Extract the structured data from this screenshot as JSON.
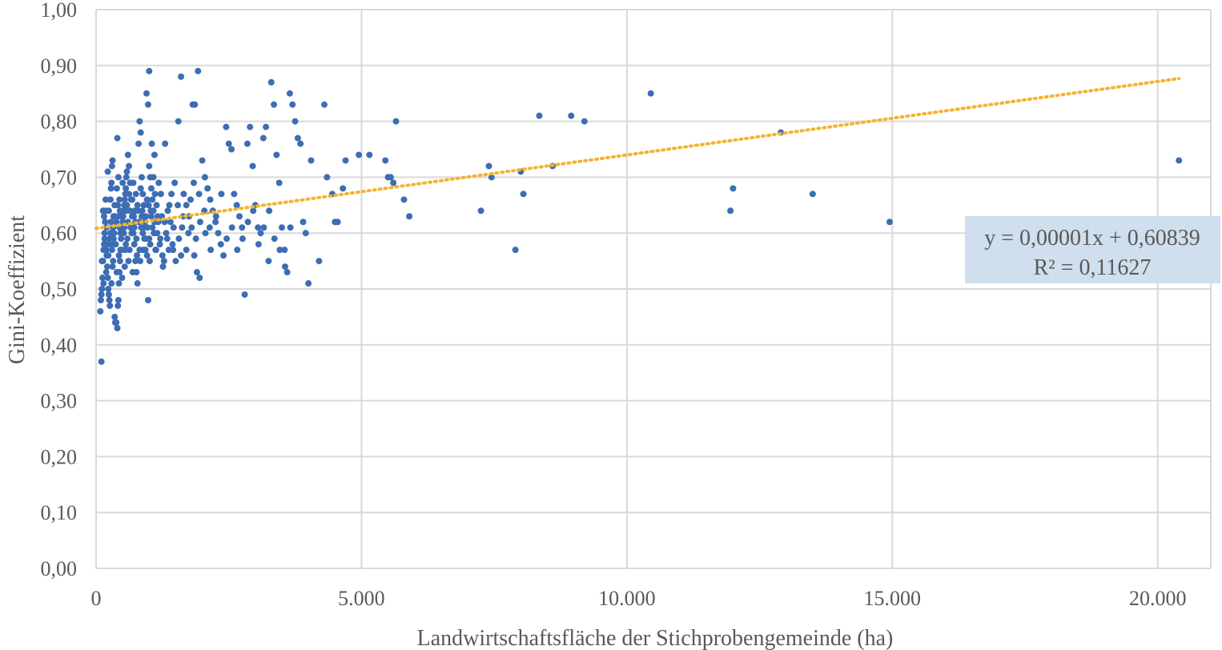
{
  "chart_data": {
    "type": "scatter",
    "title": "",
    "xlabel": "Landwirtschaftsfläche der Stichprobengemeinde  (ha)",
    "ylabel": "Gini-Koeffizient",
    "xlim": [
      0,
      21000
    ],
    "ylim": [
      0,
      1.0
    ],
    "x_ticks": [
      0,
      5000,
      10000,
      15000,
      20000
    ],
    "x_tick_labels": [
      "0",
      "5.000",
      "10.000",
      "15.000",
      "20.000"
    ],
    "y_ticks": [
      0,
      0.1,
      0.2,
      0.3,
      0.4,
      0.5,
      0.6,
      0.7,
      0.8,
      0.9,
      1.0
    ],
    "y_tick_labels": [
      "0,00",
      "0,10",
      "0,20",
      "0,30",
      "0,40",
      "0,50",
      "0,60",
      "0,70",
      "0,80",
      "0,90",
      "1,00"
    ],
    "grid": true,
    "colors": {
      "points": "#3d6db3",
      "trendline": "#f2b430",
      "equation_box": "#cfdfed",
      "grid": "#d9d9d9",
      "text": "#595959"
    },
    "trendline": {
      "type": "linear",
      "slope": 1.315e-05,
      "intercept": 0.60839,
      "x_range": [
        0,
        20400
      ],
      "equation": "y = 0,00001x + 0,60839",
      "r_squared": "R² = 0,11627"
    },
    "points": [
      [
        100,
        0.37
      ],
      [
        80,
        0.46
      ],
      [
        90,
        0.48
      ],
      [
        100,
        0.49
      ],
      [
        110,
        0.5
      ],
      [
        120,
        0.52
      ],
      [
        130,
        0.55
      ],
      [
        140,
        0.57
      ],
      [
        150,
        0.58
      ],
      [
        160,
        0.6
      ],
      [
        170,
        0.62
      ],
      [
        180,
        0.64
      ],
      [
        190,
        0.57
      ],
      [
        200,
        0.56
      ],
      [
        210,
        0.54
      ],
      [
        220,
        0.52
      ],
      [
        230,
        0.5
      ],
      [
        240,
        0.49
      ],
      [
        250,
        0.48
      ],
      [
        260,
        0.47
      ],
      [
        270,
        0.66
      ],
      [
        280,
        0.68
      ],
      [
        290,
        0.69
      ],
      [
        300,
        0.72
      ],
      [
        310,
        0.73
      ],
      [
        320,
        0.61
      ],
      [
        330,
        0.59
      ],
      [
        340,
        0.58
      ],
      [
        350,
        0.45
      ],
      [
        360,
        0.44
      ],
      [
        380,
        0.44
      ],
      [
        400,
        0.43
      ],
      [
        410,
        0.47
      ],
      [
        420,
        0.48
      ],
      [
        430,
        0.51
      ],
      [
        440,
        0.53
      ],
      [
        450,
        0.55
      ],
      [
        460,
        0.57
      ],
      [
        470,
        0.59
      ],
      [
        480,
        0.6
      ],
      [
        490,
        0.61
      ],
      [
        500,
        0.62
      ],
      [
        510,
        0.63
      ],
      [
        520,
        0.64
      ],
      [
        530,
        0.65
      ],
      [
        540,
        0.66
      ],
      [
        550,
        0.67
      ],
      [
        560,
        0.68
      ],
      [
        570,
        0.7
      ],
      [
        580,
        0.71
      ],
      [
        400,
        0.77
      ],
      [
        420,
        0.63
      ],
      [
        440,
        0.61
      ],
      [
        460,
        0.6
      ],
      [
        600,
        0.74
      ],
      [
        620,
        0.72
      ],
      [
        640,
        0.69
      ],
      [
        660,
        0.66
      ],
      [
        680,
        0.63
      ],
      [
        700,
        0.6
      ],
      [
        720,
        0.58
      ],
      [
        740,
        0.55
      ],
      [
        760,
        0.53
      ],
      [
        780,
        0.51
      ],
      [
        800,
        0.76
      ],
      [
        820,
        0.8
      ],
      [
        840,
        0.78
      ],
      [
        860,
        0.7
      ],
      [
        880,
        0.67
      ],
      [
        900,
        0.65
      ],
      [
        920,
        0.62
      ],
      [
        940,
        0.59
      ],
      [
        960,
        0.56
      ],
      [
        980,
        0.48
      ],
      [
        950,
        0.85
      ],
      [
        980,
        0.83
      ],
      [
        1000,
        0.72
      ],
      [
        1020,
        0.7
      ],
      [
        1040,
        0.68
      ],
      [
        1060,
        0.66
      ],
      [
        1080,
        0.64
      ],
      [
        1100,
        0.62
      ],
      [
        1000,
        0.89
      ],
      [
        1050,
        0.76
      ],
      [
        1100,
        0.74
      ],
      [
        1150,
        0.6
      ],
      [
        1200,
        0.58
      ],
      [
        1250,
        0.56
      ],
      [
        1300,
        0.76
      ],
      [
        1350,
        0.64
      ],
      [
        1400,
        0.62
      ],
      [
        1450,
        0.57
      ],
      [
        1500,
        0.55
      ],
      [
        1550,
        0.8
      ],
      [
        1600,
        0.88
      ],
      [
        1650,
        0.67
      ],
      [
        1700,
        0.65
      ],
      [
        1750,
        0.63
      ],
      [
        1800,
        0.61
      ],
      [
        1850,
        0.56
      ],
      [
        1900,
        0.53
      ],
      [
        1950,
        0.52
      ],
      [
        1820,
        0.83
      ],
      [
        1860,
        0.83
      ],
      [
        1920,
        0.89
      ],
      [
        2000,
        0.73
      ],
      [
        2050,
        0.7
      ],
      [
        2100,
        0.68
      ],
      [
        2150,
        0.66
      ],
      [
        2200,
        0.64
      ],
      [
        2250,
        0.62
      ],
      [
        2300,
        0.6
      ],
      [
        2350,
        0.58
      ],
      [
        2400,
        0.56
      ],
      [
        2450,
        0.79
      ],
      [
        2500,
        0.76
      ],
      [
        2550,
        0.75
      ],
      [
        2600,
        0.67
      ],
      [
        2650,
        0.65
      ],
      [
        2700,
        0.63
      ],
      [
        2750,
        0.61
      ],
      [
        2800,
        0.49
      ],
      [
        2850,
        0.76
      ],
      [
        2900,
        0.79
      ],
      [
        2950,
        0.72
      ],
      [
        3000,
        0.65
      ],
      [
        3050,
        0.61
      ],
      [
        3100,
        0.6
      ],
      [
        3150,
        0.77
      ],
      [
        3200,
        0.79
      ],
      [
        3250,
        0.55
      ],
      [
        3300,
        0.87
      ],
      [
        3350,
        0.83
      ],
      [
        3400,
        0.74
      ],
      [
        3450,
        0.69
      ],
      [
        3500,
        0.61
      ],
      [
        3550,
        0.57
      ],
      [
        3600,
        0.53
      ],
      [
        3650,
        0.85
      ],
      [
        3700,
        0.83
      ],
      [
        3750,
        0.8
      ],
      [
        3800,
        0.77
      ],
      [
        3850,
        0.76
      ],
      [
        3900,
        0.62
      ],
      [
        3950,
        0.6
      ],
      [
        4000,
        0.51
      ],
      [
        4050,
        0.73
      ],
      [
        4200,
        0.55
      ],
      [
        4300,
        0.83
      ],
      [
        4350,
        0.7
      ],
      [
        4450,
        0.67
      ],
      [
        4500,
        0.62
      ],
      [
        4550,
        0.62
      ],
      [
        4650,
        0.68
      ],
      [
        4700,
        0.73
      ],
      [
        4950,
        0.74
      ],
      [
        5150,
        0.74
      ],
      [
        5450,
        0.73
      ],
      [
        5500,
        0.7
      ],
      [
        5550,
        0.7
      ],
      [
        5600,
        0.69
      ],
      [
        5650,
        0.8
      ],
      [
        5800,
        0.66
      ],
      [
        5900,
        0.63
      ],
      [
        7250,
        0.64
      ],
      [
        7400,
        0.72
      ],
      [
        7450,
        0.7
      ],
      [
        7900,
        0.57
      ],
      [
        8000,
        0.71
      ],
      [
        8050,
        0.67
      ],
      [
        8350,
        0.81
      ],
      [
        8600,
        0.72
      ],
      [
        8950,
        0.81
      ],
      [
        9200,
        0.8
      ],
      [
        10450,
        0.85
      ],
      [
        11950,
        0.64
      ],
      [
        12000,
        0.68
      ],
      [
        12900,
        0.78
      ],
      [
        13500,
        0.67
      ],
      [
        14950,
        0.62
      ],
      [
        20400,
        0.73
      ],
      [
        150,
        0.63
      ],
      [
        200,
        0.61
      ],
      [
        250,
        0.59
      ],
      [
        300,
        0.57
      ],
      [
        350,
        0.65
      ],
      [
        380,
        0.62
      ],
      [
        450,
        0.64
      ],
      [
        520,
        0.6
      ],
      [
        560,
        0.58
      ],
      [
        600,
        0.62
      ],
      [
        640,
        0.64
      ],
      [
        680,
        0.66
      ],
      [
        720,
        0.61
      ],
      [
        760,
        0.59
      ],
      [
        820,
        0.57
      ],
      [
        860,
        0.63
      ],
      [
        900,
        0.61
      ],
      [
        960,
        0.66
      ],
      [
        1020,
        0.58
      ],
      [
        1080,
        0.7
      ],
      [
        1120,
        0.57
      ],
      [
        1160,
        0.63
      ],
      [
        1220,
        0.67
      ],
      [
        1280,
        0.55
      ],
      [
        1340,
        0.59
      ],
      [
        1420,
        0.67
      ],
      [
        1480,
        0.69
      ],
      [
        1560,
        0.59
      ],
      [
        1620,
        0.61
      ],
      [
        1700,
        0.57
      ],
      [
        1780,
        0.66
      ],
      [
        1880,
        0.59
      ],
      [
        1960,
        0.62
      ],
      [
        2060,
        0.6
      ],
      [
        2160,
        0.57
      ],
      [
        2260,
        0.63
      ],
      [
        2360,
        0.67
      ],
      [
        2460,
        0.59
      ],
      [
        2560,
        0.61
      ],
      [
        2660,
        0.57
      ],
      [
        2760,
        0.59
      ],
      [
        2860,
        0.62
      ],
      [
        2960,
        0.64
      ],
      [
        3060,
        0.58
      ],
      [
        3160,
        0.61
      ],
      [
        3260,
        0.64
      ],
      [
        3360,
        0.59
      ],
      [
        3460,
        0.57
      ],
      [
        3560,
        0.54
      ],
      [
        3660,
        0.61
      ],
      [
        220,
        0.71
      ],
      [
        260,
        0.58
      ],
      [
        320,
        0.55
      ],
      [
        360,
        0.63
      ],
      [
        420,
        0.7
      ],
      [
        480,
        0.57
      ],
      [
        540,
        0.54
      ],
      [
        580,
        0.65
      ],
      [
        620,
        0.67
      ],
      [
        700,
        0.69
      ],
      [
        740,
        0.62
      ],
      [
        780,
        0.65
      ],
      [
        840,
        0.68
      ],
      [
        880,
        0.6
      ],
      [
        940,
        0.63
      ],
      [
        1000,
        0.59
      ],
      [
        1060,
        0.61
      ],
      [
        1140,
        0.65
      ],
      [
        1180,
        0.69
      ],
      [
        1240,
        0.63
      ],
      [
        1320,
        0.6
      ],
      [
        1380,
        0.65
      ],
      [
        1460,
        0.61
      ],
      [
        1540,
        0.65
      ],
      [
        1640,
        0.63
      ],
      [
        1740,
        0.6
      ],
      [
        1840,
        0.69
      ],
      [
        1940,
        0.67
      ],
      [
        2040,
        0.64
      ],
      [
        2140,
        0.61
      ],
      [
        180,
        0.66
      ],
      [
        240,
        0.64
      ],
      [
        280,
        0.62
      ],
      [
        340,
        0.6
      ],
      [
        390,
        0.68
      ],
      [
        440,
        0.66
      ],
      [
        500,
        0.69
      ],
      [
        570,
        0.64
      ],
      [
        650,
        0.61
      ],
      [
        730,
        0.64
      ],
      [
        810,
        0.62
      ],
      [
        870,
        0.64
      ],
      [
        930,
        0.57
      ],
      [
        990,
        0.65
      ],
      [
        1040,
        0.63
      ],
      [
        1090,
        0.6
      ],
      [
        1170,
        0.62
      ],
      [
        1210,
        0.59
      ],
      [
        1290,
        0.62
      ],
      [
        1370,
        0.57
      ],
      [
        130,
        0.64
      ],
      [
        160,
        0.59
      ],
      [
        210,
        0.58
      ],
      [
        270,
        0.6
      ],
      [
        330,
        0.63
      ],
      [
        370,
        0.58
      ],
      [
        410,
        0.65
      ],
      [
        470,
        0.63
      ],
      [
        530,
        0.61
      ],
      [
        590,
        0.59
      ],
      [
        630,
        0.57
      ],
      [
        670,
        0.6
      ],
      [
        710,
        0.63
      ],
      [
        750,
        0.67
      ],
      [
        790,
        0.64
      ],
      [
        850,
        0.61
      ],
      [
        910,
        0.59
      ],
      [
        970,
        0.61
      ],
      [
        1030,
        0.64
      ],
      [
        1110,
        0.67
      ],
      [
        110,
        0.55
      ],
      [
        140,
        0.51
      ],
      [
        190,
        0.53
      ],
      [
        230,
        0.56
      ],
      [
        290,
        0.51
      ],
      [
        310,
        0.54
      ],
      [
        390,
        0.53
      ],
      [
        430,
        0.56
      ],
      [
        490,
        0.52
      ],
      [
        550,
        0.57
      ],
      [
        610,
        0.55
      ],
      [
        690,
        0.53
      ],
      [
        770,
        0.56
      ],
      [
        830,
        0.55
      ],
      [
        890,
        0.57
      ],
      [
        1010,
        0.55
      ],
      [
        1130,
        0.57
      ],
      [
        1260,
        0.54
      ],
      [
        1440,
        0.58
      ],
      [
        1600,
        0.56
      ]
    ]
  }
}
